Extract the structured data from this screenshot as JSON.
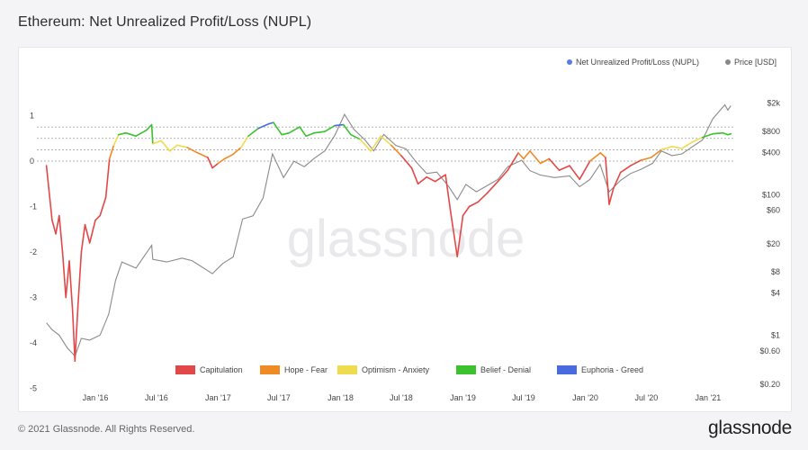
{
  "page": {
    "title": "Ethereum: Net Unrealized Profit/Loss (NUPL)",
    "copyright": "© 2021 Glassnode. All Rights Reserved.",
    "logo": "glassnode",
    "watermark": "glassnode"
  },
  "chart_data": {
    "type": "line",
    "title": "Ethereum: Net Unrealized Profit/Loss (NUPL)",
    "x_start": "2015-08",
    "x_end": "2021-03",
    "x_ticks": [
      "Jan '16",
      "Jul '16",
      "Jan '17",
      "Jul '17",
      "Jan '18",
      "Jul '18",
      "Jan '19",
      "Jul '19",
      "Jan '20",
      "Jul '20",
      "Jan '21"
    ],
    "x_tick_dates": [
      "2016-01",
      "2016-07",
      "2017-01",
      "2017-07",
      "2018-01",
      "2018-07",
      "2019-01",
      "2019-07",
      "2020-01",
      "2020-07",
      "2021-01"
    ],
    "y_left": {
      "range": [
        -5,
        1.5
      ],
      "ticks": [
        1,
        0,
        -1,
        -2,
        -3,
        -4,
        -5
      ],
      "tick_labels": [
        "1",
        "0",
        "-1",
        "-2",
        "-3",
        "-4",
        "-5"
      ]
    },
    "y_right": {
      "scale": "log",
      "range": [
        0.2,
        3000
      ],
      "ticks": [
        2000,
        800,
        400,
        100,
        60,
        20,
        8,
        4,
        1,
        0.6,
        0.2
      ],
      "tick_labels": [
        "$2k",
        "$800",
        "$400",
        "$100",
        "$60",
        "$20",
        "$8",
        "$4",
        "$1",
        "$0.60",
        "$0.20"
      ]
    },
    "reference_levels": [
      0.75,
      0.5,
      0.25,
      0
    ],
    "top_legend": [
      {
        "name": "Net Unrealized Profit/Loss (NUPL)",
        "color": "#5b7be0"
      },
      {
        "name": "Price [USD]",
        "color": "#888888"
      }
    ],
    "zones": [
      {
        "name": "Capitulation",
        "color": "#e34848",
        "range": [
          -5,
          0
        ]
      },
      {
        "name": "Hope - Fear",
        "color": "#f08a24",
        "range": [
          0,
          0.25
        ]
      },
      {
        "name": "Optimism - Anxiety",
        "color": "#eedb4e",
        "range": [
          0.25,
          0.5
        ]
      },
      {
        "name": "Belief - Denial",
        "color": "#3bc22e",
        "range": [
          0.5,
          0.75
        ]
      },
      {
        "name": "Euphoria - Greed",
        "color": "#4a6ae0",
        "range": [
          0.75,
          1.5
        ]
      }
    ],
    "series": [
      {
        "name": "Net Unrealized Profit/Loss (NUPL)",
        "axis": "left",
        "points": [
          [
            "2015-08-08",
            -0.1
          ],
          [
            "2015-08-15",
            -0.6
          ],
          [
            "2015-08-25",
            -1.3
          ],
          [
            "2015-09-05",
            -1.6
          ],
          [
            "2015-09-15",
            -1.2
          ],
          [
            "2015-09-25",
            -2.0
          ],
          [
            "2015-10-05",
            -3.0
          ],
          [
            "2015-10-15",
            -2.2
          ],
          [
            "2015-10-25",
            -3.3
          ],
          [
            "2015-11-01",
            -4.4
          ],
          [
            "2015-11-10",
            -3.2
          ],
          [
            "2015-11-20",
            -2.0
          ],
          [
            "2015-12-01",
            -1.4
          ],
          [
            "2015-12-15",
            -1.8
          ],
          [
            "2016-01-01",
            -1.3
          ],
          [
            "2016-01-15",
            -1.2
          ],
          [
            "2016-02-01",
            -0.8
          ],
          [
            "2016-02-12",
            0.05
          ],
          [
            "2016-02-25",
            0.35
          ],
          [
            "2016-03-10",
            0.58
          ],
          [
            "2016-04-01",
            0.62
          ],
          [
            "2016-05-01",
            0.55
          ],
          [
            "2016-06-01",
            0.68
          ],
          [
            "2016-06-17",
            0.8
          ],
          [
            "2016-06-20",
            0.38
          ],
          [
            "2016-07-15",
            0.45
          ],
          [
            "2016-08-10",
            0.22
          ],
          [
            "2016-09-01",
            0.35
          ],
          [
            "2016-10-01",
            0.3
          ],
          [
            "2016-11-01",
            0.18
          ],
          [
            "2016-12-01",
            0.08
          ],
          [
            "2016-12-15",
            -0.15
          ],
          [
            "2017-01-01",
            -0.05
          ],
          [
            "2017-01-20",
            0.05
          ],
          [
            "2017-02-15",
            0.15
          ],
          [
            "2017-03-10",
            0.3
          ],
          [
            "2017-04-01",
            0.55
          ],
          [
            "2017-05-01",
            0.72
          ],
          [
            "2017-06-01",
            0.82
          ],
          [
            "2017-06-15",
            0.85
          ],
          [
            "2017-07-10",
            0.58
          ],
          [
            "2017-08-01",
            0.62
          ],
          [
            "2017-09-01",
            0.75
          ],
          [
            "2017-09-20",
            0.55
          ],
          [
            "2017-10-15",
            0.62
          ],
          [
            "2017-11-15",
            0.65
          ],
          [
            "2017-12-15",
            0.78
          ],
          [
            "2018-01-10",
            0.8
          ],
          [
            "2018-02-01",
            0.58
          ],
          [
            "2018-03-01",
            0.48
          ],
          [
            "2018-04-01",
            0.22
          ],
          [
            "2018-05-01",
            0.55
          ],
          [
            "2018-06-01",
            0.35
          ],
          [
            "2018-07-01",
            0.12
          ],
          [
            "2018-08-01",
            -0.15
          ],
          [
            "2018-08-20",
            -0.5
          ],
          [
            "2018-09-15",
            -0.35
          ],
          [
            "2018-10-10",
            -0.45
          ],
          [
            "2018-11-10",
            -0.3
          ],
          [
            "2018-11-25",
            -1.1
          ],
          [
            "2018-12-15",
            -2.1
          ],
          [
            "2019-01-01",
            -1.2
          ],
          [
            "2019-01-20",
            -1.0
          ],
          [
            "2019-02-15",
            -0.9
          ],
          [
            "2019-03-15",
            -0.7
          ],
          [
            "2019-04-15",
            -0.45
          ],
          [
            "2019-05-15",
            -0.2
          ],
          [
            "2019-06-15",
            0.18
          ],
          [
            "2019-07-01",
            0.05
          ],
          [
            "2019-07-20",
            0.22
          ],
          [
            "2019-08-20",
            -0.05
          ],
          [
            "2019-09-15",
            0.05
          ],
          [
            "2019-10-15",
            -0.2
          ],
          [
            "2019-11-15",
            -0.1
          ],
          [
            "2019-12-15",
            -0.4
          ],
          [
            "2020-01-15",
            0.0
          ],
          [
            "2020-02-15",
            0.18
          ],
          [
            "2020-03-01",
            0.08
          ],
          [
            "2020-03-12",
            -0.95
          ],
          [
            "2020-03-25",
            -0.6
          ],
          [
            "2020-04-15",
            -0.25
          ],
          [
            "2020-05-15",
            -0.1
          ],
          [
            "2020-06-15",
            0.02
          ],
          [
            "2020-07-15",
            0.08
          ],
          [
            "2020-08-15",
            0.25
          ],
          [
            "2020-09-15",
            0.32
          ],
          [
            "2020-10-15",
            0.28
          ],
          [
            "2020-11-15",
            0.42
          ],
          [
            "2020-12-15",
            0.52
          ],
          [
            "2021-01-15",
            0.6
          ],
          [
            "2021-02-15",
            0.62
          ],
          [
            "2021-03-01",
            0.58
          ],
          [
            "2021-03-10",
            0.6
          ]
        ]
      },
      {
        "name": "Price [USD]",
        "axis": "right",
        "color": "#8a8a8a",
        "points": [
          [
            "2015-08-08",
            1.5
          ],
          [
            "2015-08-25",
            1.2
          ],
          [
            "2015-09-15",
            1.0
          ],
          [
            "2015-10-10",
            0.65
          ],
          [
            "2015-10-25",
            0.55
          ],
          [
            "2015-11-01",
            0.5
          ],
          [
            "2015-11-20",
            0.9
          ],
          [
            "2015-12-15",
            0.85
          ],
          [
            "2016-01-15",
            1.0
          ],
          [
            "2016-02-10",
            2.0
          ],
          [
            "2016-03-01",
            6.0
          ],
          [
            "2016-03-20",
            11.0
          ],
          [
            "2016-05-01",
            9.0
          ],
          [
            "2016-06-17",
            19.0
          ],
          [
            "2016-06-20",
            12.0
          ],
          [
            "2016-08-01",
            11.0
          ],
          [
            "2016-09-15",
            12.5
          ],
          [
            "2016-10-15",
            11.5
          ],
          [
            "2016-12-15",
            7.5
          ],
          [
            "2017-01-15",
            10.5
          ],
          [
            "2017-02-15",
            13.0
          ],
          [
            "2017-03-15",
            45.0
          ],
          [
            "2017-04-15",
            50.0
          ],
          [
            "2017-05-15",
            90.0
          ],
          [
            "2017-06-12",
            380.0
          ],
          [
            "2017-07-15",
            175.0
          ],
          [
            "2017-08-15",
            300.0
          ],
          [
            "2017-09-15",
            250.0
          ],
          [
            "2017-10-15",
            330.0
          ],
          [
            "2017-11-15",
            420.0
          ],
          [
            "2017-12-15",
            700.0
          ],
          [
            "2018-01-13",
            1390.0
          ],
          [
            "2018-02-10",
            850.0
          ],
          [
            "2018-03-15",
            600.0
          ],
          [
            "2018-04-10",
            420.0
          ],
          [
            "2018-05-10",
            720.0
          ],
          [
            "2018-06-15",
            500.0
          ],
          [
            "2018-07-15",
            450.0
          ],
          [
            "2018-08-15",
            290.0
          ],
          [
            "2018-09-15",
            200.0
          ],
          [
            "2018-10-15",
            210.0
          ],
          [
            "2018-11-20",
            130.0
          ],
          [
            "2018-12-15",
            85.0
          ],
          [
            "2019-01-10",
            140.0
          ],
          [
            "2019-02-10",
            110.0
          ],
          [
            "2019-03-15",
            135.0
          ],
          [
            "2019-04-15",
            165.0
          ],
          [
            "2019-05-15",
            250.0
          ],
          [
            "2019-06-25",
            310.0
          ],
          [
            "2019-07-20",
            220.0
          ],
          [
            "2019-08-20",
            190.0
          ],
          [
            "2019-10-01",
            175.0
          ],
          [
            "2019-11-15",
            185.0
          ],
          [
            "2019-12-15",
            130.0
          ],
          [
            "2020-01-15",
            165.0
          ],
          [
            "2020-02-14",
            270.0
          ],
          [
            "2020-03-12",
            110.0
          ],
          [
            "2020-04-15",
            160.0
          ],
          [
            "2020-05-15",
            200.0
          ],
          [
            "2020-06-15",
            230.0
          ],
          [
            "2020-07-20",
            280.0
          ],
          [
            "2020-08-15",
            420.0
          ],
          [
            "2020-09-15",
            360.0
          ],
          [
            "2020-10-15",
            380.0
          ],
          [
            "2020-11-15",
            480.0
          ],
          [
            "2020-12-15",
            600.0
          ],
          [
            "2021-01-15",
            1200.0
          ],
          [
            "2021-02-20",
            1900.0
          ],
          [
            "2021-03-01",
            1600.0
          ],
          [
            "2021-03-10",
            1850.0
          ]
        ]
      }
    ],
    "grid": false
  }
}
